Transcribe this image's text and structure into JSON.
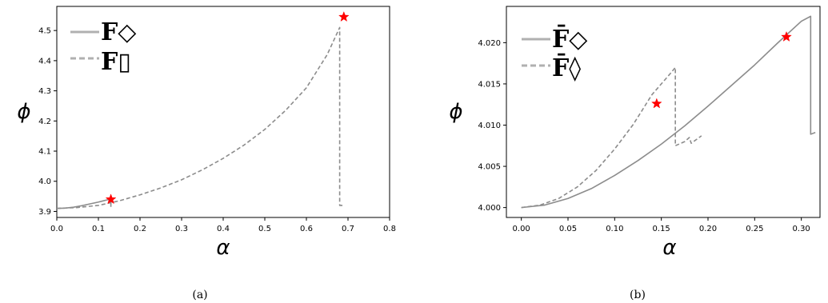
{
  "chart_data": [
    {
      "type": "line",
      "caption": "(a)",
      "xlabel": "α",
      "ylabel": "ϕ",
      "xlim": [
        0.0,
        0.8
      ],
      "ylim": [
        3.88,
        4.58
      ],
      "xticks": [
        "0.0",
        "0.1",
        "0.2",
        "0.3",
        "0.4",
        "0.5",
        "0.6",
        "0.7",
        "0.8"
      ],
      "yticks": [
        "3.9",
        "4.0",
        "4.1",
        "4.2",
        "4.3",
        "4.4",
        "4.5"
      ],
      "legend_position": "top-left",
      "series": [
        {
          "name": "F◇",
          "style": "solid",
          "color": "#8c8c8c",
          "x": [
            0.0,
            0.02,
            0.04,
            0.06,
            0.08,
            0.1,
            0.12,
            0.13,
            0.13
          ],
          "y": [
            3.91,
            3.911,
            3.914,
            3.919,
            3.925,
            3.931,
            3.938,
            3.942,
            3.915
          ]
        },
        {
          "name": "F▯",
          "style": "dashed",
          "color": "#8c8c8c",
          "x": [
            0.0,
            0.05,
            0.1,
            0.15,
            0.2,
            0.25,
            0.3,
            0.35,
            0.4,
            0.45,
            0.5,
            0.55,
            0.6,
            0.65,
            0.68,
            0.68,
            0.69
          ],
          "y": [
            3.91,
            3.913,
            3.92,
            3.935,
            3.955,
            3.978,
            4.005,
            4.038,
            4.076,
            4.12,
            4.172,
            4.235,
            4.31,
            4.42,
            4.51,
            3.92,
            3.92
          ]
        }
      ],
      "markers": [
        {
          "x": 0.13,
          "y": 3.94,
          "shape": "star",
          "color": "#ff0000"
        },
        {
          "x": 0.69,
          "y": 4.545,
          "shape": "star",
          "color": "#ff0000"
        }
      ]
    },
    {
      "type": "line",
      "caption": "(b)",
      "xlabel": "α",
      "ylabel": "ϕ",
      "xlim": [
        -0.016,
        0.32
      ],
      "ylim": [
        3.9988,
        4.0244
      ],
      "xticks": [
        "0.00",
        "0.05",
        "0.10",
        "0.15",
        "0.20",
        "0.25",
        "0.30"
      ],
      "yticks": [
        "4.000",
        "4.005",
        "4.010",
        "4.015",
        "4.020"
      ],
      "legend_position": "top-left",
      "series": [
        {
          "name": "F̄◇",
          "style": "solid",
          "color": "#8c8c8c",
          "x": [
            0.0,
            0.025,
            0.05,
            0.075,
            0.1,
            0.125,
            0.15,
            0.175,
            0.2,
            0.225,
            0.25,
            0.275,
            0.3,
            0.31,
            0.31,
            0.315
          ],
          "y": [
            4.0,
            4.0003,
            4.0011,
            4.0023,
            4.0039,
            4.0057,
            4.0077,
            4.0099,
            4.0123,
            4.0148,
            4.0173,
            4.02,
            4.0226,
            4.0232,
            4.0089,
            4.0091
          ]
        },
        {
          "name": "F̄◊",
          "style": "dashed",
          "color": "#8c8c8c",
          "x": [
            0.0,
            0.02,
            0.04,
            0.06,
            0.08,
            0.1,
            0.12,
            0.14,
            0.16,
            0.165,
            0.165,
            0.175,
            0.18,
            0.182,
            0.193
          ],
          "y": [
            4.0,
            4.0003,
            4.0011,
            4.0025,
            4.0045,
            4.0071,
            4.0101,
            4.0137,
            4.0163,
            4.017,
            4.0075,
            4.008,
            4.0085,
            4.0078,
            4.0087
          ]
        }
      ],
      "markers": [
        {
          "x": 0.145,
          "y": 4.0126,
          "shape": "star",
          "color": "#ff0000"
        },
        {
          "x": 0.284,
          "y": 4.0207,
          "shape": "star",
          "color": "#ff0000"
        }
      ]
    }
  ]
}
